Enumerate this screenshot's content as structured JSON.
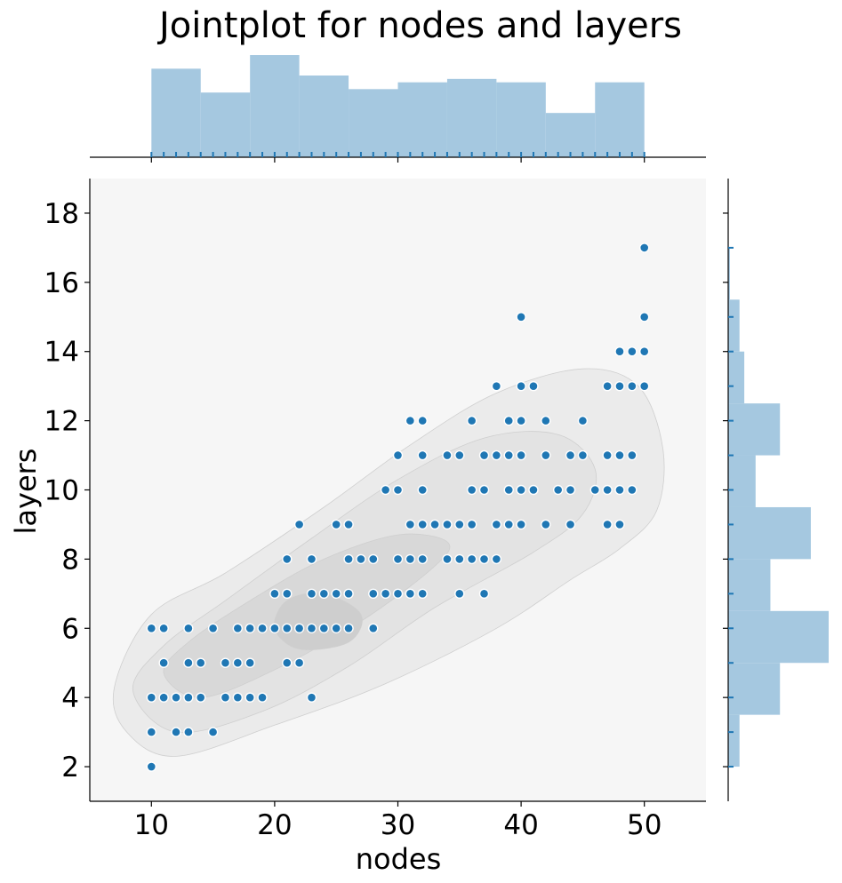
{
  "chart_data": {
    "type": "scatter",
    "title": "Jointplot for nodes and layers",
    "xlabel": "nodes",
    "ylabel": "layers",
    "xlim": [
      5,
      55
    ],
    "ylim": [
      1,
      19
    ],
    "xticks": [
      "10",
      "20",
      "30",
      "40",
      "50"
    ],
    "yticks": [
      "2",
      "4",
      "6",
      "8",
      "10",
      "12",
      "14",
      "16",
      "18"
    ],
    "grid": false,
    "background": "#f6f6f6",
    "colors": {
      "points": "#1f77b4",
      "histogram": "#a5c8e0",
      "rug": "#1f77b4",
      "kde": "#dcdcdc"
    },
    "points": [
      [
        10,
        2
      ],
      [
        10,
        3
      ],
      [
        10,
        4
      ],
      [
        10,
        6
      ],
      [
        11,
        4
      ],
      [
        11,
        5
      ],
      [
        11,
        6
      ],
      [
        12,
        3
      ],
      [
        12,
        4
      ],
      [
        13,
        3
      ],
      [
        13,
        4
      ],
      [
        13,
        5
      ],
      [
        13,
        6
      ],
      [
        14,
        4
      ],
      [
        14,
        5
      ],
      [
        15,
        3
      ],
      [
        15,
        6
      ],
      [
        16,
        4
      ],
      [
        16,
        5
      ],
      [
        17,
        4
      ],
      [
        17,
        5
      ],
      [
        17,
        6
      ],
      [
        18,
        4
      ],
      [
        18,
        5
      ],
      [
        18,
        6
      ],
      [
        19,
        4
      ],
      [
        19,
        6
      ],
      [
        20,
        6
      ],
      [
        20,
        7
      ],
      [
        21,
        5
      ],
      [
        21,
        6
      ],
      [
        21,
        7
      ],
      [
        21,
        8
      ],
      [
        22,
        5
      ],
      [
        22,
        6
      ],
      [
        22,
        9
      ],
      [
        23,
        4
      ],
      [
        23,
        6
      ],
      [
        23,
        7
      ],
      [
        23,
        8
      ],
      [
        24,
        6
      ],
      [
        24,
        7
      ],
      [
        25,
        6
      ],
      [
        25,
        7
      ],
      [
        25,
        9
      ],
      [
        26,
        6
      ],
      [
        26,
        7
      ],
      [
        26,
        8
      ],
      [
        26,
        9
      ],
      [
        27,
        8
      ],
      [
        28,
        6
      ],
      [
        28,
        7
      ],
      [
        28,
        8
      ],
      [
        29,
        7
      ],
      [
        29,
        10
      ],
      [
        30,
        7
      ],
      [
        30,
        8
      ],
      [
        30,
        10
      ],
      [
        30,
        11
      ],
      [
        31,
        7
      ],
      [
        31,
        8
      ],
      [
        31,
        9
      ],
      [
        31,
        12
      ],
      [
        32,
        7
      ],
      [
        32,
        8
      ],
      [
        32,
        9
      ],
      [
        32,
        10
      ],
      [
        32,
        11
      ],
      [
        32,
        12
      ],
      [
        33,
        9
      ],
      [
        34,
        8
      ],
      [
        34,
        9
      ],
      [
        34,
        11
      ],
      [
        35,
        7
      ],
      [
        35,
        8
      ],
      [
        35,
        9
      ],
      [
        35,
        11
      ],
      [
        36,
        8
      ],
      [
        36,
        9
      ],
      [
        36,
        10
      ],
      [
        36,
        12
      ],
      [
        37,
        7
      ],
      [
        37,
        8
      ],
      [
        37,
        10
      ],
      [
        37,
        11
      ],
      [
        38,
        8
      ],
      [
        38,
        9
      ],
      [
        38,
        11
      ],
      [
        38,
        13
      ],
      [
        39,
        9
      ],
      [
        39,
        10
      ],
      [
        39,
        11
      ],
      [
        39,
        12
      ],
      [
        40,
        9
      ],
      [
        40,
        10
      ],
      [
        40,
        11
      ],
      [
        40,
        12
      ],
      [
        40,
        13
      ],
      [
        40,
        15
      ],
      [
        41,
        10
      ],
      [
        41,
        13
      ],
      [
        42,
        9
      ],
      [
        42,
        11
      ],
      [
        42,
        12
      ],
      [
        43,
        10
      ],
      [
        44,
        9
      ],
      [
        44,
        10
      ],
      [
        44,
        11
      ],
      [
        45,
        11
      ],
      [
        45,
        12
      ],
      [
        46,
        10
      ],
      [
        47,
        9
      ],
      [
        47,
        10
      ],
      [
        47,
        11
      ],
      [
        47,
        13
      ],
      [
        48,
        9
      ],
      [
        48,
        10
      ],
      [
        48,
        11
      ],
      [
        48,
        13
      ],
      [
        48,
        14
      ],
      [
        49,
        10
      ],
      [
        49,
        11
      ],
      [
        49,
        13
      ],
      [
        49,
        14
      ],
      [
        50,
        13
      ],
      [
        50,
        14
      ],
      [
        50,
        15
      ],
      [
        50,
        17
      ]
    ],
    "marginal_x": {
      "bin_edges": [
        10,
        14,
        18,
        22,
        26,
        30,
        34,
        38,
        42,
        46,
        50
      ],
      "density": [
        0.026,
        0.019,
        0.03,
        0.024,
        0.02,
        0.022,
        0.023,
        0.022,
        0.013,
        0.022
      ]
    },
    "marginal_y": {
      "bin_edges": [
        2,
        3.5,
        5,
        6.5,
        8,
        9.5,
        11,
        12.5,
        14,
        15.5,
        17
      ],
      "density": [
        0.026,
        0.119,
        0.231,
        0.097,
        0.19,
        0.063,
        0.119,
        0.037,
        0.026,
        0.004
      ]
    },
    "kde_contours": [
      {
        "level": 1,
        "fill": "#ebebeb",
        "points": [
          [
            7,
            4.3
          ],
          [
            8,
            3
          ],
          [
            12,
            2.3
          ],
          [
            20,
            3.2
          ],
          [
            29,
            4.4
          ],
          [
            38,
            6.0
          ],
          [
            44,
            7.4
          ],
          [
            48,
            8.3
          ],
          [
            51,
            9.4
          ],
          [
            51.5,
            11.2
          ],
          [
            49.5,
            13.0
          ],
          [
            45,
            13.5
          ],
          [
            38,
            12.8
          ],
          [
            31,
            11.3
          ],
          [
            24,
            9.5
          ],
          [
            16,
            7.6
          ],
          [
            10,
            6.4
          ]
        ]
      },
      {
        "level": 2,
        "fill": "#e3e3e3",
        "points": [
          [
            8.5,
            4.2
          ],
          [
            12,
            3.0
          ],
          [
            19,
            3.6
          ],
          [
            26,
            4.9
          ],
          [
            33,
            6.6
          ],
          [
            41,
            8.2
          ],
          [
            45,
            9.3
          ],
          [
            46,
            10.6
          ],
          [
            43,
            11.6
          ],
          [
            37,
            11.5
          ],
          [
            30,
            10.3
          ],
          [
            23,
            8.6
          ],
          [
            16,
            6.8
          ],
          [
            11,
            5.5
          ]
        ]
      },
      {
        "level": 3,
        "fill": "#d8d8d8",
        "points": [
          [
            11,
            4.7
          ],
          [
            14,
            4.0
          ],
          [
            20,
            4.8
          ],
          [
            27,
            6.2
          ],
          [
            33,
            7.8
          ],
          [
            34,
            8.5
          ],
          [
            30,
            8.7
          ],
          [
            24,
            8.0
          ],
          [
            18,
            6.8
          ],
          [
            13,
            5.6
          ]
        ]
      },
      {
        "level": 4,
        "fill": "#cecece",
        "points": [
          [
            20,
            6.0
          ],
          [
            22,
            5.4
          ],
          [
            26,
            5.6
          ],
          [
            27,
            6.4
          ],
          [
            24,
            7.0
          ],
          [
            21,
            6.8
          ]
        ]
      }
    ]
  }
}
